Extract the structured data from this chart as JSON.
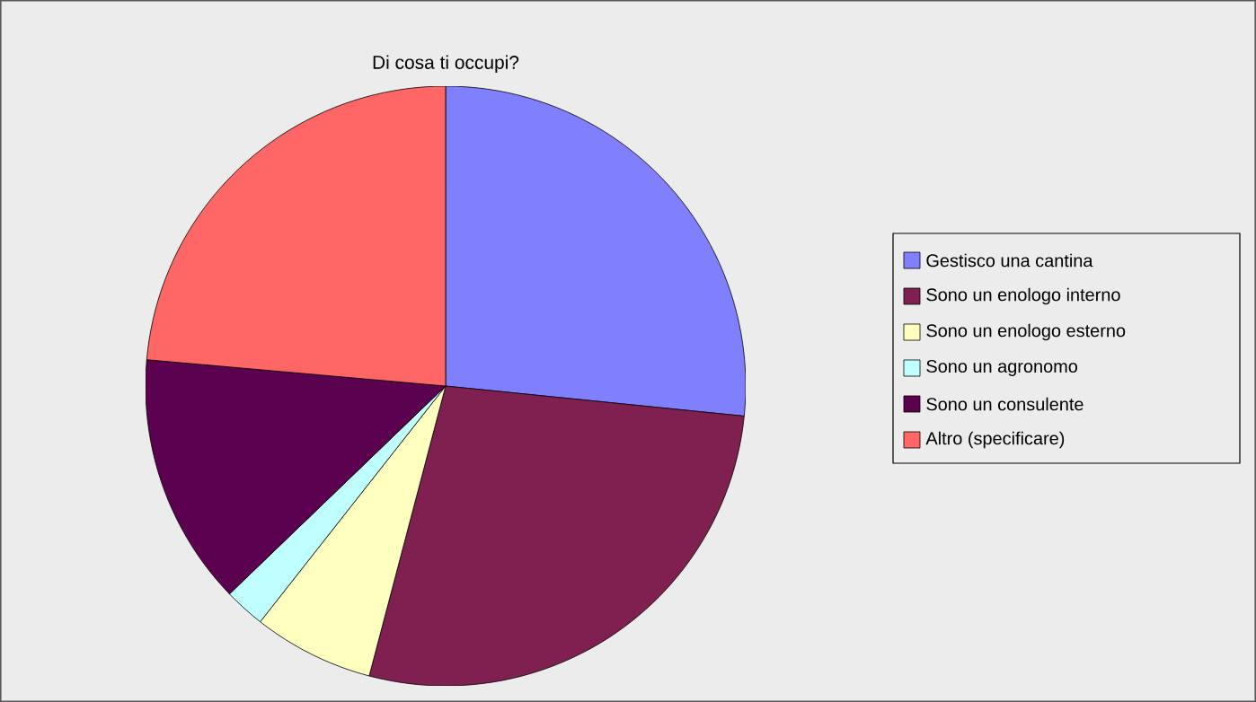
{
  "chart_data": {
    "type": "pie",
    "title": "Di cosa ti occupi?",
    "categories": [
      "Gestisco una cantina",
      "Sono un enologo interno",
      "Sono un enologo esterno",
      "Sono un agronomo",
      "Sono un consulente",
      "Altro (specificare)"
    ],
    "values": [
      26.6,
      27.5,
      6.5,
      2.2,
      13.6,
      23.6
    ],
    "colors": [
      "#8080ff",
      "#802050",
      "#ffffc0",
      "#c0ffff",
      "#5c0050",
      "#ff6666"
    ],
    "legend": "right"
  }
}
